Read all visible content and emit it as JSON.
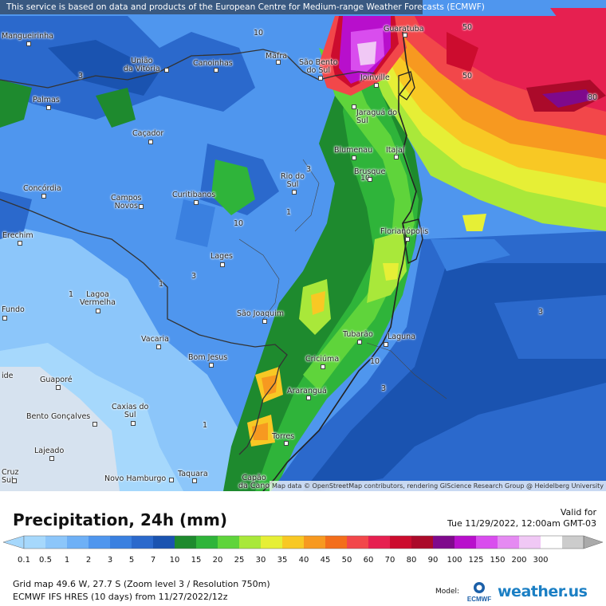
{
  "notice": "This service is based on data and products of the European Centre for Medium-range Weather Forecasts (ECMWF)",
  "attribution": "Map data © OpenStreetMap contributors, rendering GIScience Research Group @ Heidelberg University",
  "title": "Precipitation, 24h (mm)",
  "valid_label": "Valid for",
  "valid_date": "Tue 11/29/2022, 12:00am GMT-03",
  "grid_info": "Grid map 49.6 W, 27.7 S (Zoom level 3 / Resolution 750m)",
  "model_info": "ECMWF IFS HRES (10 days) from 11/27/2022/12z",
  "model_label": "Model:",
  "ecmwf_logo_text": "ECMWF",
  "brand": "weather.us",
  "scale": {
    "ticks": [
      "0.1",
      "0.5",
      "1",
      "2",
      "3",
      "5",
      "7",
      "10",
      "15",
      "20",
      "25",
      "30",
      "35",
      "40",
      "45",
      "50",
      "60",
      "70",
      "80",
      "90",
      "100",
      "125",
      "150",
      "200",
      "300"
    ],
    "colors": [
      "#a6d8fc",
      "#8cc6fa",
      "#6eb0f6",
      "#4f96ee",
      "#3a80e0",
      "#2b69cc",
      "#1a53b0",
      "#1e8a2e",
      "#2fb43a",
      "#5fd43b",
      "#a9e83a",
      "#e6ef36",
      "#f8c824",
      "#f79920",
      "#f36e1b",
      "#f2474a",
      "#e62050",
      "#cc0c2e",
      "#ab0a2a",
      "#7f098c",
      "#b80fcc",
      "#d94dee",
      "#e58af2",
      "#f0c8f5",
      "#ffffff",
      "#cccccc"
    ]
  },
  "cities": [
    {
      "name": "Mangueirinha"
    },
    {
      "name": "União\nda Vitória"
    },
    {
      "name": "Canoinhas"
    },
    {
      "name": "Mafra"
    },
    {
      "name": "São Bento\ndo Sul"
    },
    {
      "name": "Guaratuba"
    },
    {
      "name": "Joinville"
    },
    {
      "name": "Palmas"
    },
    {
      "name": "Jaraguá do\nSul"
    },
    {
      "name": "Caçador"
    },
    {
      "name": "Blumenau"
    },
    {
      "name": "Itajaí"
    },
    {
      "name": "Brusque"
    },
    {
      "name": "Concórdia"
    },
    {
      "name": "Campos\nNovos"
    },
    {
      "name": "Curitibanos"
    },
    {
      "name": "Rio do\nSul"
    },
    {
      "name": "Erechim"
    },
    {
      "name": "Florianópolis"
    },
    {
      "name": "Lages"
    },
    {
      "name": "Lagoa\nVermelha"
    },
    {
      "name": "Fundo"
    },
    {
      "name": "São Joaquim"
    },
    {
      "name": "Vacaria"
    },
    {
      "name": "Tubarão"
    },
    {
      "name": "Laguna"
    },
    {
      "name": "Bom Jesus"
    },
    {
      "name": "Criciúma"
    },
    {
      "name": "ide"
    },
    {
      "name": "Guaporé"
    },
    {
      "name": "Araranguá"
    },
    {
      "name": "Caxias do\nSul"
    },
    {
      "name": "Bento Gonçalves"
    },
    {
      "name": "Torres"
    },
    {
      "name": "Lajeado"
    },
    {
      "name": "Cruz\nSul"
    },
    {
      "name": "Novo Hamburgo"
    },
    {
      "name": "Taquara"
    },
    {
      "name": "Capão\nda Cano"
    }
  ],
  "contour_labels": [
    "10",
    "3",
    "50",
    "50",
    "80",
    "3",
    "1",
    "10",
    "10",
    "3",
    "1",
    "1",
    "3",
    "10",
    "3",
    "1",
    "10"
  ]
}
